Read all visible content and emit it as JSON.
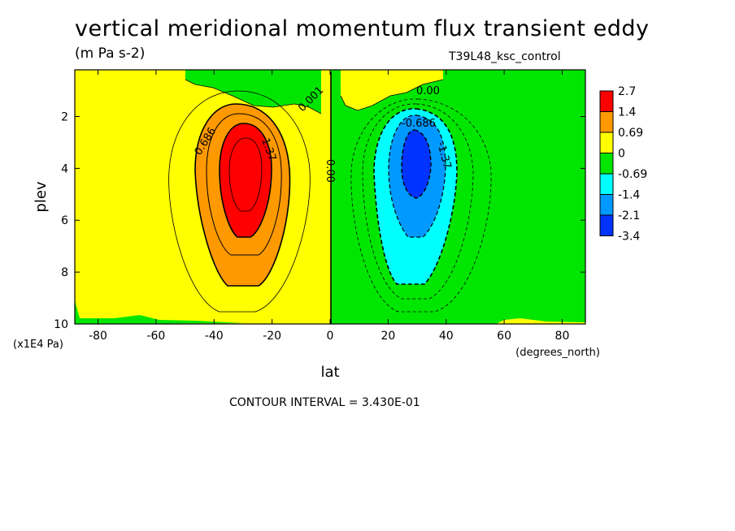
{
  "title": "vertical meridional momentum flux transient eddy",
  "units": "(m Pa s-2)",
  "run_name": "T39L48_ksc_control",
  "contour_interval_text": "CONTOUR INTERVAL = 3.430E-01",
  "chart_data": {
    "type": "heatmap",
    "xlabel": "lat",
    "ylabel": "plev",
    "x_units": "(degrees_north)",
    "y_units": "(x1E4 Pa)",
    "xlim": [
      -88,
      88
    ],
    "ylim": [
      10,
      0.2
    ],
    "x_ticks": [
      -80,
      -60,
      -40,
      -20,
      0,
      20,
      40,
      60,
      80
    ],
    "y_ticks": [
      2,
      4,
      6,
      8,
      10
    ],
    "colorbar": {
      "labels": [
        "2.7",
        "1.4",
        "0.69",
        "0",
        "-0.69",
        "-1.4",
        "-2.1",
        "-3.4"
      ],
      "colors": [
        "#ff0000",
        "#ff9900",
        "#ffff00",
        "#00e600",
        "#00ffff",
        "#0099ff",
        "#0033ff"
      ]
    },
    "contour_labels": [
      "0.686",
      "1.37",
      "0.00",
      "0.00",
      "0.001",
      "-0.686",
      "-1.37"
    ],
    "features": [
      {
        "type": "max",
        "lat": -30,
        "plev": 3.8,
        "value": 2.7
      },
      {
        "type": "min",
        "lat": 30,
        "plev": 3.8,
        "value": -3.4
      }
    ]
  }
}
